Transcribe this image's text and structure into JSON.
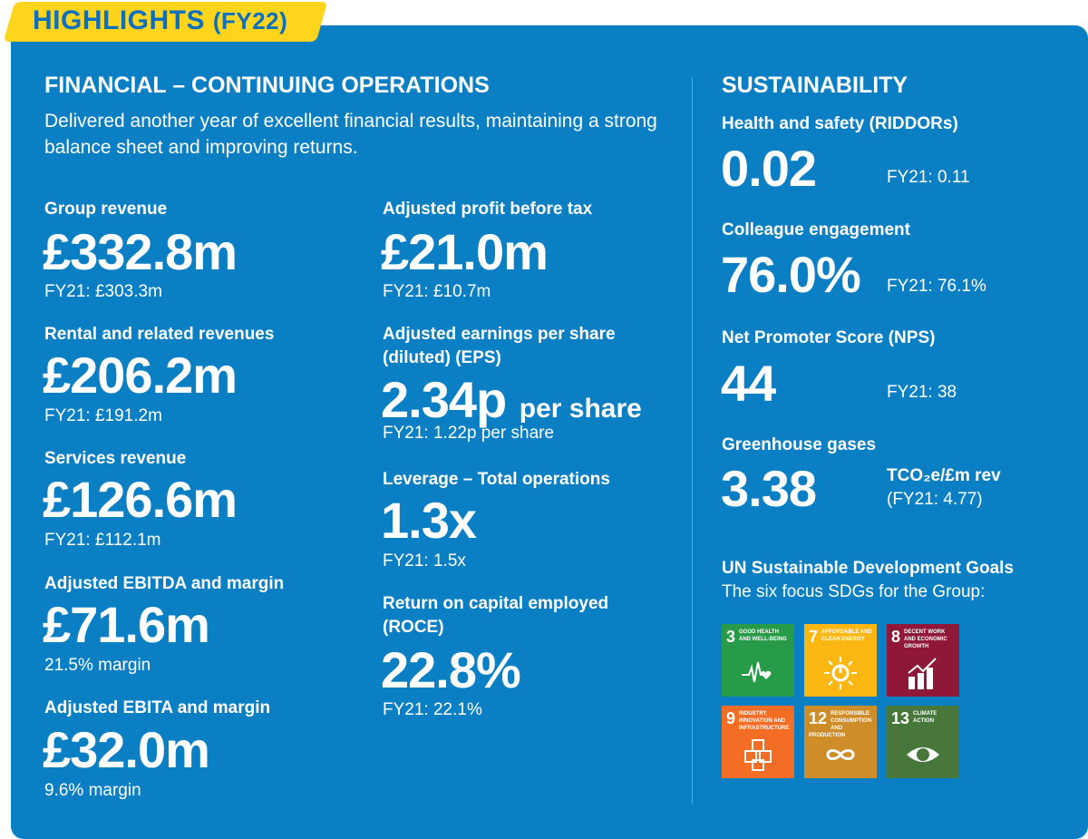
{
  "header": {
    "title": "HIGHLIGHTS",
    "period": "(FY22)"
  },
  "financial": {
    "heading": "FINANCIAL – CONTINUING OPERATIONS",
    "intro": "Delivered another year of excellent financial results, maintaining a strong balance sheet and improving returns.",
    "col1": [
      {
        "label": "Group revenue",
        "value": "£332.8m",
        "sub": "FY21: £303.3m"
      },
      {
        "label": "Rental and related revenues",
        "value": "£206.2m",
        "sub": "FY21: £191.2m"
      },
      {
        "label": "Services revenue",
        "value": "£126.6m",
        "sub": "FY21: £112.1m"
      },
      {
        "label": "Adjusted EBITDA and margin",
        "value": "£71.6m",
        "sub": "21.5% margin"
      },
      {
        "label": "Adjusted EBITA and margin",
        "value": "£32.0m",
        "sub": "9.6% margin"
      }
    ],
    "col2": [
      {
        "label": "Adjusted profit before tax",
        "value": "£21.0m",
        "sub": "FY21: £10.7m"
      },
      {
        "label": "Adjusted earnings per share",
        "label2": "(diluted) (EPS)",
        "value": "2.34p",
        "unit": "per share",
        "sub": "FY21: 1.22p per share"
      },
      {
        "label": "Leverage – Total operations",
        "value": "1.3x",
        "sub": "FY21: 1.5x"
      },
      {
        "label": "Return on capital employed",
        "label2": "(ROCE)",
        "value": "22.8%",
        "sub": "FY21: 22.1%"
      }
    ]
  },
  "sustainability": {
    "heading": "SUSTAINABILITY",
    "items": [
      {
        "label": "Health and safety (RIDDORs)",
        "value": "0.02",
        "sub": "FY21: 0.11"
      },
      {
        "label": "Colleague engagement",
        "value": "76.0%",
        "sub": "FY21: 76.1%"
      },
      {
        "label": "Net Promoter Score (NPS)",
        "value": "44",
        "sub": "FY21: 38"
      },
      {
        "label": "Greenhouse gases",
        "value": "3.38",
        "unit": "TCO₂e/£m rev",
        "sub": "(FY21: 4.77)"
      }
    ],
    "sdg_heading": "UN Sustainable Development Goals",
    "sdg_sub": "The six focus SDGs for the Group:",
    "sdgs": [
      {
        "num": "3",
        "text": "Good health and well-being",
        "color": "#279b48"
      },
      {
        "num": "7",
        "text": "Affordable and clean energy",
        "color": "#fcb713"
      },
      {
        "num": "8",
        "text": "Decent work and economic growth",
        "color": "#8f1838"
      },
      {
        "num": "9",
        "text": "Industry, innovation and infrastructure",
        "color": "#f36e24"
      },
      {
        "num": "12",
        "text": "Responsible consumption and production",
        "color": "#cf8d2a"
      },
      {
        "num": "13",
        "text": "Climate action",
        "color": "#48773c"
      }
    ]
  }
}
